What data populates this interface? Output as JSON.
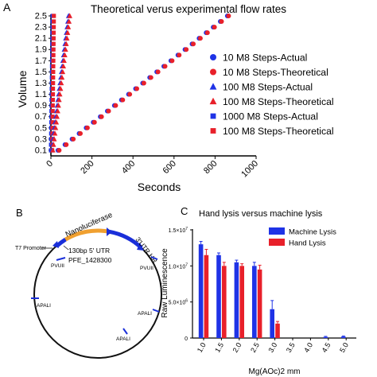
{
  "panels": {
    "a": "A",
    "b": "B",
    "c": "C"
  },
  "chart_data": [
    {
      "panel": "A",
      "type": "scatter",
      "title": "Theoretical verus experimental flow rates",
      "xlabel": "Seconds",
      "ylabel": "Volume",
      "xlim": [
        0,
        1000
      ],
      "ylim": [
        0,
        2.5
      ],
      "x_ticks": [
        0,
        200,
        400,
        600,
        800,
        1000
      ],
      "y_ticks": [
        0.1,
        0.3,
        0.5,
        0.7,
        0.9,
        1.1,
        1.3,
        1.5,
        1.7,
        1.9,
        2.1,
        2.3,
        2.5
      ],
      "y_tick_labels": [
        "0.1",
        "0.3",
        "0.5",
        "0.7",
        "0.9",
        "1.1",
        "1.3",
        "1.5",
        "1.7",
        "1.9",
        "2.1",
        "2.3",
        "2.5"
      ],
      "legend_position": "right",
      "series": [
        {
          "name": "10 M8 Steps-Actual",
          "marker": "circle",
          "color": "#1f33e6",
          "rate_seconds_per_volume": 344,
          "y_start": 0.1,
          "y_end": 2.5,
          "y_step": 0.1
        },
        {
          "name": "10 M8 Steps-Theoretical",
          "marker": "circle",
          "color": "#e8202a",
          "rate_seconds_per_volume": 344,
          "y_start": 0.1,
          "y_end": 2.5,
          "y_step": 0.1
        },
        {
          "name": "100 M8 Steps-Actual",
          "marker": "triangle",
          "color": "#1f33e6",
          "rate_seconds_per_volume": 34.4,
          "y_start": 0.1,
          "y_end": 2.5,
          "y_step": 0.1
        },
        {
          "name": "100 M8 Steps-Theoretical",
          "marker": "triangle",
          "color": "#e8202a",
          "rate_seconds_per_volume": 34.4,
          "y_start": 0.1,
          "y_end": 2.5,
          "y_step": 0.1
        },
        {
          "name": "1000 M8 Steps-Actual",
          "marker": "square",
          "color": "#1f33e6",
          "rate_seconds_per_volume": 3.44,
          "y_start": 0.1,
          "y_end": 2.5,
          "y_step": 0.1
        },
        {
          "name": "100 M8 Steps-Theoretical",
          "marker": "square",
          "color": "#e8202a",
          "rate_seconds_per_volume": 3.44,
          "y_start": 0.1,
          "y_end": 2.5,
          "y_step": 0.1
        }
      ]
    },
    {
      "panel": "B",
      "type": "diagram",
      "labels": {
        "nanoluciferase": "Nanoluciferase",
        "utr3": "3'UTR HR",
        "t7": "T7 Promoter",
        "utr5": "130bp 5' UTR",
        "pfe": "PFE_1428300",
        "pvuii_a": "PVUII",
        "pvuii_b": "PVUII",
        "apali_a": "APALI",
        "apali_b": "APALI",
        "apali_c": "APALI"
      }
    },
    {
      "panel": "C",
      "type": "bar",
      "title": "Hand lysis versus machine lysis",
      "xlabel": "Mg(AOc)2 mm",
      "ylabel": "Raw Luminescence",
      "ylim": [
        0,
        15000000
      ],
      "y_ticks": [
        0,
        5000000,
        10000000,
        15000000
      ],
      "y_tick_labels": [
        {
          "mantissa": "0",
          "exp": ""
        },
        {
          "mantissa": "5.0×10",
          "exp": "6"
        },
        {
          "mantissa": "1.0×10",
          "exp": "7"
        },
        {
          "mantissa": "1.5×10",
          "exp": "7"
        }
      ],
      "categories": [
        "1.0",
        "1.5",
        "2.0",
        "2.5",
        "3.0",
        "3.5",
        "4.0",
        "4.5",
        "5.0"
      ],
      "legend_position": "top-right",
      "series": [
        {
          "name": "Machine Lysis",
          "color": "#1f33e6",
          "values": [
            13000000,
            11500000,
            10500000,
            10000000,
            4000000,
            0,
            0,
            150000,
            200000
          ],
          "errors": [
            400000,
            300000,
            300000,
            500000,
            1200000,
            0,
            0,
            80000,
            80000
          ]
        },
        {
          "name": "Hand Lysis",
          "color": "#e8202a",
          "values": [
            11500000,
            10000000,
            10000000,
            9500000,
            2000000,
            0,
            0,
            0,
            0
          ],
          "errors": [
            800000,
            500000,
            300000,
            600000,
            300000,
            0,
            0,
            0,
            0
          ]
        }
      ]
    }
  ]
}
